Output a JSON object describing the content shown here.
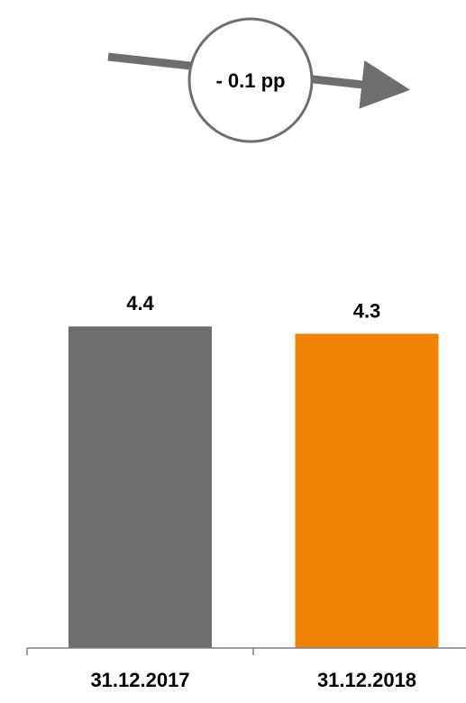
{
  "chart_data": {
    "type": "bar",
    "categories": [
      "31.12.2017",
      "31.12.2018"
    ],
    "values": [
      4.4,
      4.3
    ],
    "value_labels": [
      "4.4",
      "4.3"
    ],
    "colors": [
      "#6d6e70",
      "#f08300"
    ],
    "ylim": [
      0,
      4.6
    ],
    "grid": false,
    "legend": "none",
    "annotation": {
      "text": "- 0.1 pp",
      "arrow_color": "#6d6e70",
      "circle_color": "#6d6e70"
    }
  }
}
